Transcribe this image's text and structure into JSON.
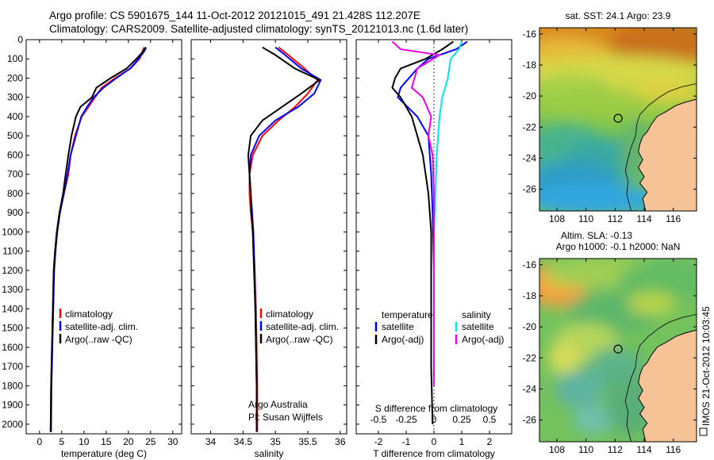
{
  "header": {
    "line1": "Argo profile: CS 5901675_144 11-Oct-2012 20121015_491 21.428S 112.207E",
    "line2": "Climatology: CARS2009. Satellite-adjusted climatology: synTS_20121013.nc (1.6d later)"
  },
  "footer": {
    "imos_text": "IMOS 21-Oct-2012 10:03:45"
  },
  "chart_data": [
    {
      "type": "line",
      "xlabel": "temperature (deg C)",
      "xticks": [
        0,
        5,
        10,
        15,
        20,
        25,
        30
      ],
      "xlim": [
        -3,
        32
      ],
      "ylim": [
        0,
        2050
      ],
      "yticks": [
        0,
        100,
        200,
        300,
        400,
        500,
        600,
        700,
        800,
        900,
        1000,
        1100,
        1200,
        1300,
        1400,
        1500,
        1600,
        1700,
        1800,
        1900,
        2000
      ],
      "legend": [
        "climatology",
        "satellite-adj. clim.",
        "Argo(..raw -QC)"
      ],
      "series": [
        {
          "name": "climatology",
          "color": "#ff0000",
          "x": [
            23.5,
            23.2,
            22.5,
            20.5,
            17,
            14,
            12.5,
            11,
            9.5,
            8,
            7,
            6.5,
            5.5,
            4.5,
            3.9,
            3.5,
            3.2,
            3,
            2.8,
            2.6,
            2.5
          ],
          "y": [
            40,
            60,
            100,
            150,
            200,
            250,
            300,
            350,
            400,
            500,
            600,
            700,
            800,
            900,
            1000,
            1100,
            1200,
            1400,
            1600,
            1800,
            2040
          ]
        },
        {
          "name": "satellite-adj. clim.",
          "color": "#0000ff",
          "x": [
            24,
            23.6,
            22.3,
            20.4,
            17.3,
            14.4,
            12.2,
            10.7,
            9.4,
            8.2,
            7,
            6.3,
            5.5,
            4.6,
            4,
            3.6,
            3.3,
            3.1,
            2.9,
            2.7,
            2.6
          ],
          "y": [
            40,
            60,
            100,
            150,
            200,
            250,
            300,
            350,
            400,
            500,
            600,
            700,
            800,
            900,
            1000,
            1100,
            1200,
            1400,
            1600,
            1800,
            2040
          ]
        },
        {
          "name": "Argo(..raw -QC)",
          "color": "#000000",
          "x": [
            23.8,
            23.4,
            21.8,
            19.6,
            16,
            12.8,
            11.8,
            9.2,
            8.2,
            7.2,
            6.5,
            5.9,
            5.3,
            4.5,
            3.9,
            3.5,
            3.2,
            3,
            2.8,
            2.6,
            2.5
          ],
          "y": [
            40,
            60,
            100,
            150,
            200,
            250,
            300,
            350,
            400,
            500,
            600,
            700,
            800,
            900,
            1000,
            1100,
            1200,
            1400,
            1600,
            1800,
            2040
          ]
        }
      ]
    },
    {
      "type": "line",
      "xlabel": "salinity",
      "xticks": [
        34,
        34.5,
        35,
        35.5,
        36
      ],
      "xlim": [
        33.7,
        36.1
      ],
      "ylim": [
        0,
        2050
      ],
      "legend": [
        "climatology",
        "satellite-adj. clim.",
        "Argo(..raw -QC)"
      ],
      "annotation": [
        "Argo Australia",
        "PI: Susan Wijffels"
      ],
      "series": [
        {
          "name": "climatology",
          "color": "#ff0000",
          "x": [
            35.05,
            35.2,
            35.45,
            35.65,
            35.5,
            35.3,
            35.05,
            34.8,
            34.65,
            34.6,
            34.6,
            34.62,
            34.65,
            34.68,
            34.7,
            34.71,
            34.72,
            34.72
          ],
          "y": [
            40,
            80,
            150,
            210,
            280,
            350,
            420,
            500,
            600,
            700,
            800,
            900,
            1000,
            1200,
            1400,
            1600,
            1800,
            2040
          ]
        },
        {
          "name": "satellite-adj. clim.",
          "color": "#0000ff",
          "x": [
            35,
            35.15,
            35.4,
            35.7,
            35.6,
            35.35,
            35,
            34.75,
            34.62,
            34.6,
            34.62,
            34.64,
            34.66,
            34.68,
            34.69,
            34.7,
            34.71,
            34.71
          ],
          "y": [
            40,
            80,
            150,
            210,
            280,
            350,
            420,
            500,
            600,
            700,
            800,
            900,
            1000,
            1200,
            1400,
            1600,
            1800,
            2040
          ]
        },
        {
          "name": "Argo(..raw -QC)",
          "color": "#000000",
          "x": [
            34.8,
            35,
            35.3,
            35.68,
            35.4,
            35.1,
            34.8,
            34.62,
            34.58,
            34.6,
            34.62,
            34.63,
            34.65,
            34.67,
            34.69,
            34.7,
            34.71,
            34.71
          ],
          "y": [
            40,
            80,
            150,
            210,
            280,
            350,
            420,
            500,
            600,
            700,
            800,
            900,
            1000,
            1200,
            1400,
            1600,
            1800,
            2040
          ]
        }
      ]
    },
    {
      "type": "line",
      "xlabel": "T difference from climatology",
      "xticks": [
        -2,
        -1,
        0,
        1,
        2
      ],
      "xlim": [
        -2.8,
        2.8
      ],
      "top_label": "S difference from climatology",
      "top_ticks": [
        {
          "label": "-0.5",
          "t": -2
        },
        {
          "label": "-0.25",
          "t": -1
        },
        {
          "label": "0",
          "t": 0
        },
        {
          "label": "0.25",
          "t": 1
        },
        {
          "label": "0.5",
          "t": 2
        }
      ],
      "ylim": [
        0,
        2050
      ],
      "legend_temperature": [
        "temperature",
        "satellite",
        "Argo(-adj)"
      ],
      "legend_salinity": [
        "salinity",
        "satellite",
        "Argo(-adj)"
      ],
      "series": [
        {
          "name": "satellite",
          "color": "#0000ff",
          "x": [
            1.2,
            0.8,
            -0.2,
            -0.6,
            -0.9,
            -1.2,
            -1.3,
            -0.6,
            -0.2,
            -0.1,
            -0.05,
            0
          ],
          "y": [
            10,
            50,
            100,
            150,
            200,
            250,
            300,
            400,
            500,
            700,
            900,
            1200
          ]
        },
        {
          "name": "Argo(-adj)",
          "color": "#000000",
          "x": [
            0.7,
            0.3,
            -0.3,
            -1.2,
            -1.4,
            -1.5,
            -1.2,
            -0.8,
            -0.6,
            -0.4,
            -0.3,
            -0.2,
            -0.1,
            -0.1,
            -0.1,
            -0.1,
            -0.05
          ],
          "y": [
            10,
            50,
            100,
            150,
            200,
            250,
            300,
            400,
            500,
            600,
            700,
            800,
            1000,
            1200,
            1400,
            1700,
            2000
          ]
        },
        {
          "name": "satellite",
          "color": "#00e5ee",
          "x": [
            1,
            0.9,
            0.6,
            0.5,
            0.3,
            0.2,
            0.15,
            0.1,
            0.05,
            0
          ],
          "y": [
            10,
            50,
            100,
            200,
            300,
            400,
            500,
            600,
            800,
            1000
          ]
        },
        {
          "name": "Argo(-adj)",
          "color": "#ee00ee",
          "x": [
            -1.5,
            -1.2,
            0.2,
            -0.6,
            -0.8,
            -0.4,
            -0.1,
            -0.2,
            -0.05,
            0,
            0,
            0
          ],
          "y": [
            10,
            50,
            80,
            150,
            250,
            300,
            400,
            500,
            600,
            800,
            1200,
            1800
          ]
        }
      ]
    },
    {
      "type": "heatmap",
      "title": "sat. SST: 24.1  Argo: 23.9",
      "xticks": [
        108,
        110,
        112,
        114,
        116
      ],
      "yticks": [
        -16,
        -18,
        -20,
        -22,
        -24,
        -26
      ],
      "xlim": [
        106.8,
        117.6
      ],
      "ylim": [
        -27.4,
        -15.6
      ],
      "marker": {
        "lon": 112.207,
        "lat": -21.428
      }
    },
    {
      "type": "heatmap",
      "title": "Altim. SLA: -0.13",
      "subtitle": "Argo h1000: -0.1 h2000: NaN",
      "xticks": [
        108,
        110,
        112,
        114,
        116
      ],
      "yticks": [
        -16,
        -18,
        -20,
        -22,
        -24,
        -26
      ],
      "xlim": [
        106.8,
        117.6
      ],
      "ylim": [
        -27.4,
        -15.6
      ],
      "marker": {
        "lon": 112.207,
        "lat": -21.428
      }
    }
  ]
}
